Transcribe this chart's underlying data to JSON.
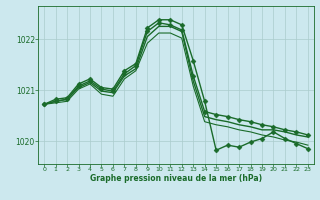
{
  "bg_color": "#cce8ee",
  "grid_color": "#aacccc",
  "line_color": "#1a6b2a",
  "marker_color": "#1a6b2a",
  "xlabel": "Graphe pression niveau de la mer (hPa)",
  "xlabel_color": "#1a6b2a",
  "ylim": [
    1019.55,
    1022.65
  ],
  "xlim": [
    -0.5,
    23.5
  ],
  "yticks": [
    1020,
    1021,
    1022
  ],
  "xticks": [
    0,
    1,
    2,
    3,
    4,
    5,
    6,
    7,
    8,
    9,
    10,
    11,
    12,
    13,
    14,
    15,
    16,
    17,
    18,
    19,
    20,
    21,
    22,
    23
  ],
  "series": [
    {
      "x": [
        0,
        1,
        2,
        3,
        4,
        5,
        6,
        7,
        8,
        9,
        10,
        11,
        12,
        13,
        14,
        15,
        16,
        17,
        18,
        19,
        20,
        21,
        22,
        23
      ],
      "y": [
        1020.72,
        1020.82,
        1020.85,
        1021.12,
        1021.22,
        1021.05,
        1021.02,
        1021.38,
        1021.52,
        1022.22,
        1022.38,
        1022.38,
        1022.28,
        1021.58,
        1020.78,
        1019.82,
        1019.92,
        1019.88,
        1019.98,
        1020.05,
        1020.18,
        1020.05,
        1019.95,
        1019.85
      ],
      "marker": "D",
      "markersize": 2.5,
      "linewidth": 1.0
    },
    {
      "x": [
        0,
        1,
        2,
        3,
        4,
        5,
        6,
        7,
        8,
        9,
        10,
        11,
        12,
        13,
        14,
        15,
        16,
        17,
        18,
        19,
        20,
        21,
        22,
        23
      ],
      "y": [
        1020.72,
        1020.78,
        1020.82,
        1021.08,
        1021.18,
        1021.02,
        1020.98,
        1021.32,
        1021.48,
        1022.15,
        1022.32,
        1022.28,
        1022.18,
        1021.28,
        1020.58,
        1020.52,
        1020.48,
        1020.42,
        1020.38,
        1020.32,
        1020.28,
        1020.22,
        1020.18,
        1020.12
      ],
      "marker": "D",
      "markersize": 2.5,
      "linewidth": 1.0
    },
    {
      "x": [
        0,
        1,
        2,
        3,
        4,
        5,
        6,
        7,
        8,
        9,
        10,
        11,
        12,
        13,
        14,
        15,
        16,
        17,
        18,
        19,
        20,
        21,
        22,
        23
      ],
      "y": [
        1020.72,
        1020.78,
        1020.82,
        1021.05,
        1021.15,
        1020.98,
        1020.95,
        1021.28,
        1021.42,
        1022.05,
        1022.25,
        1022.25,
        1022.15,
        1021.18,
        1020.48,
        1020.42,
        1020.38,
        1020.32,
        1020.28,
        1020.22,
        1020.22,
        1020.18,
        1020.12,
        1020.08
      ],
      "marker": null,
      "markersize": 0,
      "linewidth": 1.0
    },
    {
      "x": [
        0,
        1,
        2,
        3,
        4,
        5,
        6,
        7,
        8,
        9,
        10,
        11,
        12,
        13,
        14,
        15,
        16,
        17,
        18,
        19,
        20,
        21,
        22,
        23
      ],
      "y": [
        1020.72,
        1020.75,
        1020.78,
        1021.02,
        1021.12,
        1020.92,
        1020.88,
        1021.22,
        1021.38,
        1021.92,
        1022.12,
        1022.12,
        1022.02,
        1021.08,
        1020.38,
        1020.32,
        1020.28,
        1020.22,
        1020.18,
        1020.12,
        1020.08,
        1020.02,
        1019.98,
        1019.92
      ],
      "marker": null,
      "markersize": 0,
      "linewidth": 0.8
    }
  ]
}
